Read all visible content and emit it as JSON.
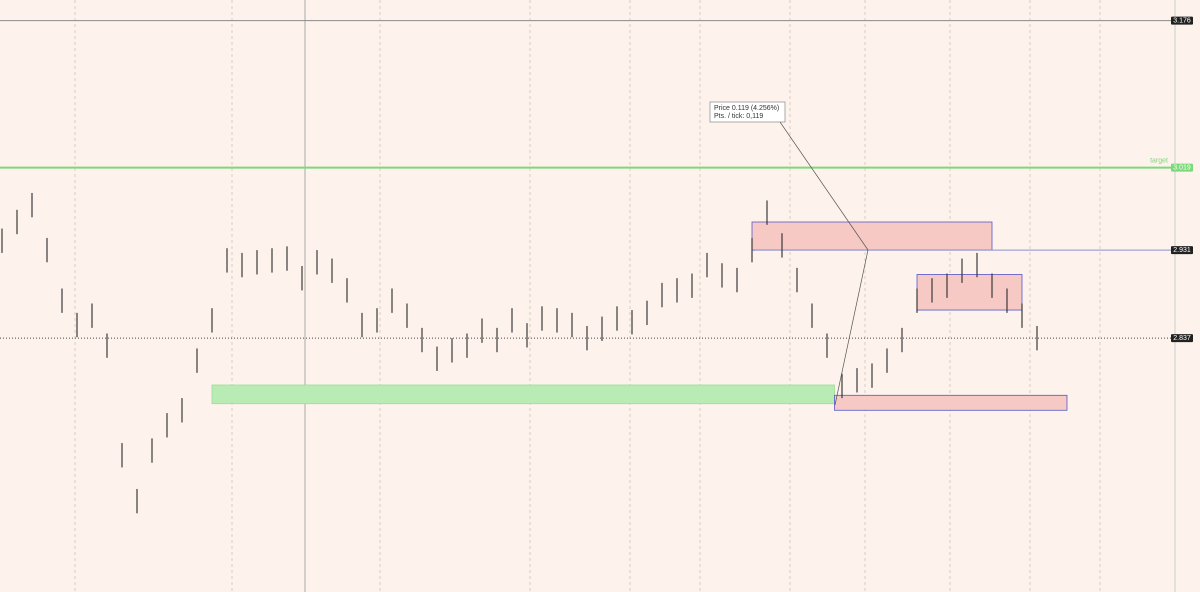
{
  "chart_data": {
    "type": "range-bars",
    "ylim": [
      2.566,
      3.198
    ],
    "bar_color": "#3a3a3a",
    "highs": [
      2.954,
      2.974,
      2.992,
      2.944,
      2.89,
      2.864,
      2.874,
      2.842,
      2.725,
      2.676,
      2.73,
      2.757,
      2.773,
      2.826,
      2.869,
      2.933,
      2.928,
      2.931,
      2.933,
      2.935,
      2.914,
      2.931,
      2.922,
      2.901,
      2.864,
      2.869,
      2.89,
      2.874,
      2.848,
      2.828,
      2.837,
      2.842,
      2.858,
      2.848,
      2.869,
      2.853,
      2.871,
      2.869,
      2.864,
      2.85,
      2.86,
      2.871,
      2.867,
      2.877,
      2.896,
      2.901,
      2.906,
      2.928,
      2.917,
      2.912,
      2.944,
      2.984,
      2.949,
      2.912,
      2.874,
      2.842,
      2.799,
      2.805,
      2.81,
      2.826,
      2.848,
      2.89,
      2.901,
      2.906,
      2.922,
      2.928,
      2.906,
      2.89,
      2.874,
      2.85
    ],
    "lows": [
      2.928,
      2.948,
      2.966,
      2.918,
      2.864,
      2.838,
      2.848,
      2.816,
      2.699,
      2.65,
      2.704,
      2.731,
      2.747,
      2.8,
      2.843,
      2.907,
      2.902,
      2.905,
      2.907,
      2.909,
      2.888,
      2.905,
      2.896,
      2.875,
      2.838,
      2.843,
      2.864,
      2.848,
      2.822,
      2.802,
      2.811,
      2.816,
      2.832,
      2.822,
      2.843,
      2.827,
      2.845,
      2.843,
      2.838,
      2.824,
      2.834,
      2.845,
      2.841,
      2.851,
      2.87,
      2.875,
      2.88,
      2.902,
      2.891,
      2.886,
      2.918,
      2.958,
      2.923,
      2.886,
      2.848,
      2.816,
      2.773,
      2.779,
      2.784,
      2.8,
      2.822,
      2.864,
      2.875,
      2.88,
      2.896,
      2.902,
      2.88,
      2.864,
      2.848,
      2.824
    ],
    "zones": [
      {
        "start": 14,
        "end": 55.5,
        "ymin": 2.767,
        "ymax": 2.787,
        "color": "#b8ecb4"
      },
      {
        "start": 50,
        "end": 66,
        "ymin": 2.931,
        "ymax": 2.961,
        "color": "#f7c9c4"
      },
      {
        "start": 61,
        "end": 68,
        "ymin": 2.867,
        "ymax": 2.905,
        "color": "#f7c9c4"
      },
      {
        "start": 55.5,
        "end": 71,
        "ymin": 2.76,
        "ymax": 2.776,
        "color": "#f7c9c4"
      }
    ],
    "levels": [
      {
        "value": 3.176,
        "color": "#8a8a8a"
      },
      {
        "value": 3.019,
        "color": "#7cd97a",
        "label": "target"
      },
      {
        "value": 2.931,
        "color": "#8a8fcf"
      },
      {
        "value": 2.837,
        "color": "#444444"
      }
    ],
    "tooltip": [
      "Price   0.119 (4.256%)",
      "Pts. / tick: 0,119"
    ]
  }
}
